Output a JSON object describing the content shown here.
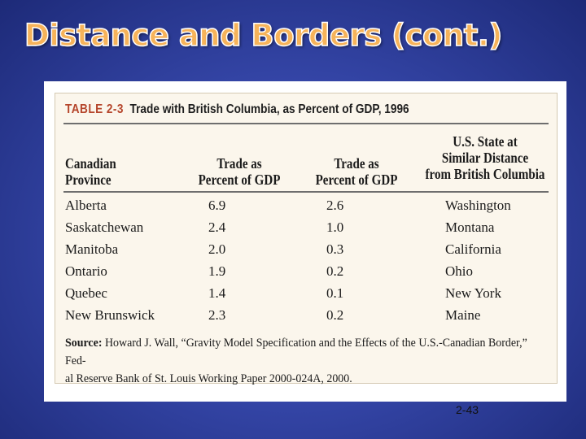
{
  "slide": {
    "title": "Distance and Borders (cont.)",
    "page_number": "2-43"
  },
  "table": {
    "label": "TABLE 2-3",
    "caption": "Trade with British Columbia, as Percent of GDP, 1996",
    "headers": {
      "province": [
        "Canadian",
        "Province"
      ],
      "trade_canada": [
        "Trade as",
        "Percent of GDP"
      ],
      "trade_us": [
        "Trade as",
        "Percent of GDP"
      ],
      "us_state": [
        "U.S. State at",
        "Similar Distance",
        "from British Columbia"
      ]
    },
    "rows": [
      {
        "province": "Alberta",
        "trade_canada": "6.9",
        "trade_us": "2.6",
        "us_state": "Washington"
      },
      {
        "province": "Saskatchewan",
        "trade_canada": "2.4",
        "trade_us": "1.0",
        "us_state": "Montana"
      },
      {
        "province": "Manitoba",
        "trade_canada": "2.0",
        "trade_us": "0.3",
        "us_state": "California"
      },
      {
        "province": "Ontario",
        "trade_canada": "1.9",
        "trade_us": "0.2",
        "us_state": "Ohio"
      },
      {
        "province": "Quebec",
        "trade_canada": "1.4",
        "trade_us": "0.1",
        "us_state": "New York"
      },
      {
        "province": "New Brunswick",
        "trade_canada": "2.3",
        "trade_us": "0.2",
        "us_state": "Maine"
      }
    ],
    "source_label": "Source:",
    "source_line1": "Howard J. Wall, “Gravity Model Specification and the Effects of the U.S.-Canadian Border,” Fed-",
    "source_line2": "al Reserve Bank of St. Louis Working Paper 2000-024A, 2000."
  }
}
